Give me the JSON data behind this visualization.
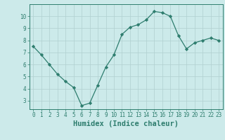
{
  "xlabel": "Humidex (Indice chaleur)",
  "x": [
    0,
    1,
    2,
    3,
    4,
    5,
    6,
    7,
    8,
    9,
    10,
    11,
    12,
    13,
    14,
    15,
    16,
    17,
    18,
    19,
    20,
    21,
    22,
    23
  ],
  "y": [
    7.5,
    6.8,
    6.0,
    5.2,
    4.6,
    4.1,
    2.6,
    2.8,
    4.3,
    5.8,
    6.8,
    8.5,
    9.1,
    9.3,
    9.7,
    10.4,
    10.3,
    10.0,
    8.4,
    7.3,
    7.8,
    8.0,
    8.2,
    8.0
  ],
  "line_color": "#2e7d6e",
  "marker": "D",
  "marker_size": 2.2,
  "bg_color": "#cceaea",
  "grid_color": "#b0d0d0",
  "ylim": [
    2.3,
    11.0
  ],
  "xlim": [
    -0.5,
    23.5
  ],
  "yticks": [
    3,
    4,
    5,
    6,
    7,
    8,
    9,
    10
  ],
  "xticks": [
    0,
    1,
    2,
    3,
    4,
    5,
    6,
    7,
    8,
    9,
    10,
    11,
    12,
    13,
    14,
    15,
    16,
    17,
    18,
    19,
    20,
    21,
    22,
    23
  ],
  "tick_fontsize": 5.5,
  "xlabel_fontsize": 7.5
}
